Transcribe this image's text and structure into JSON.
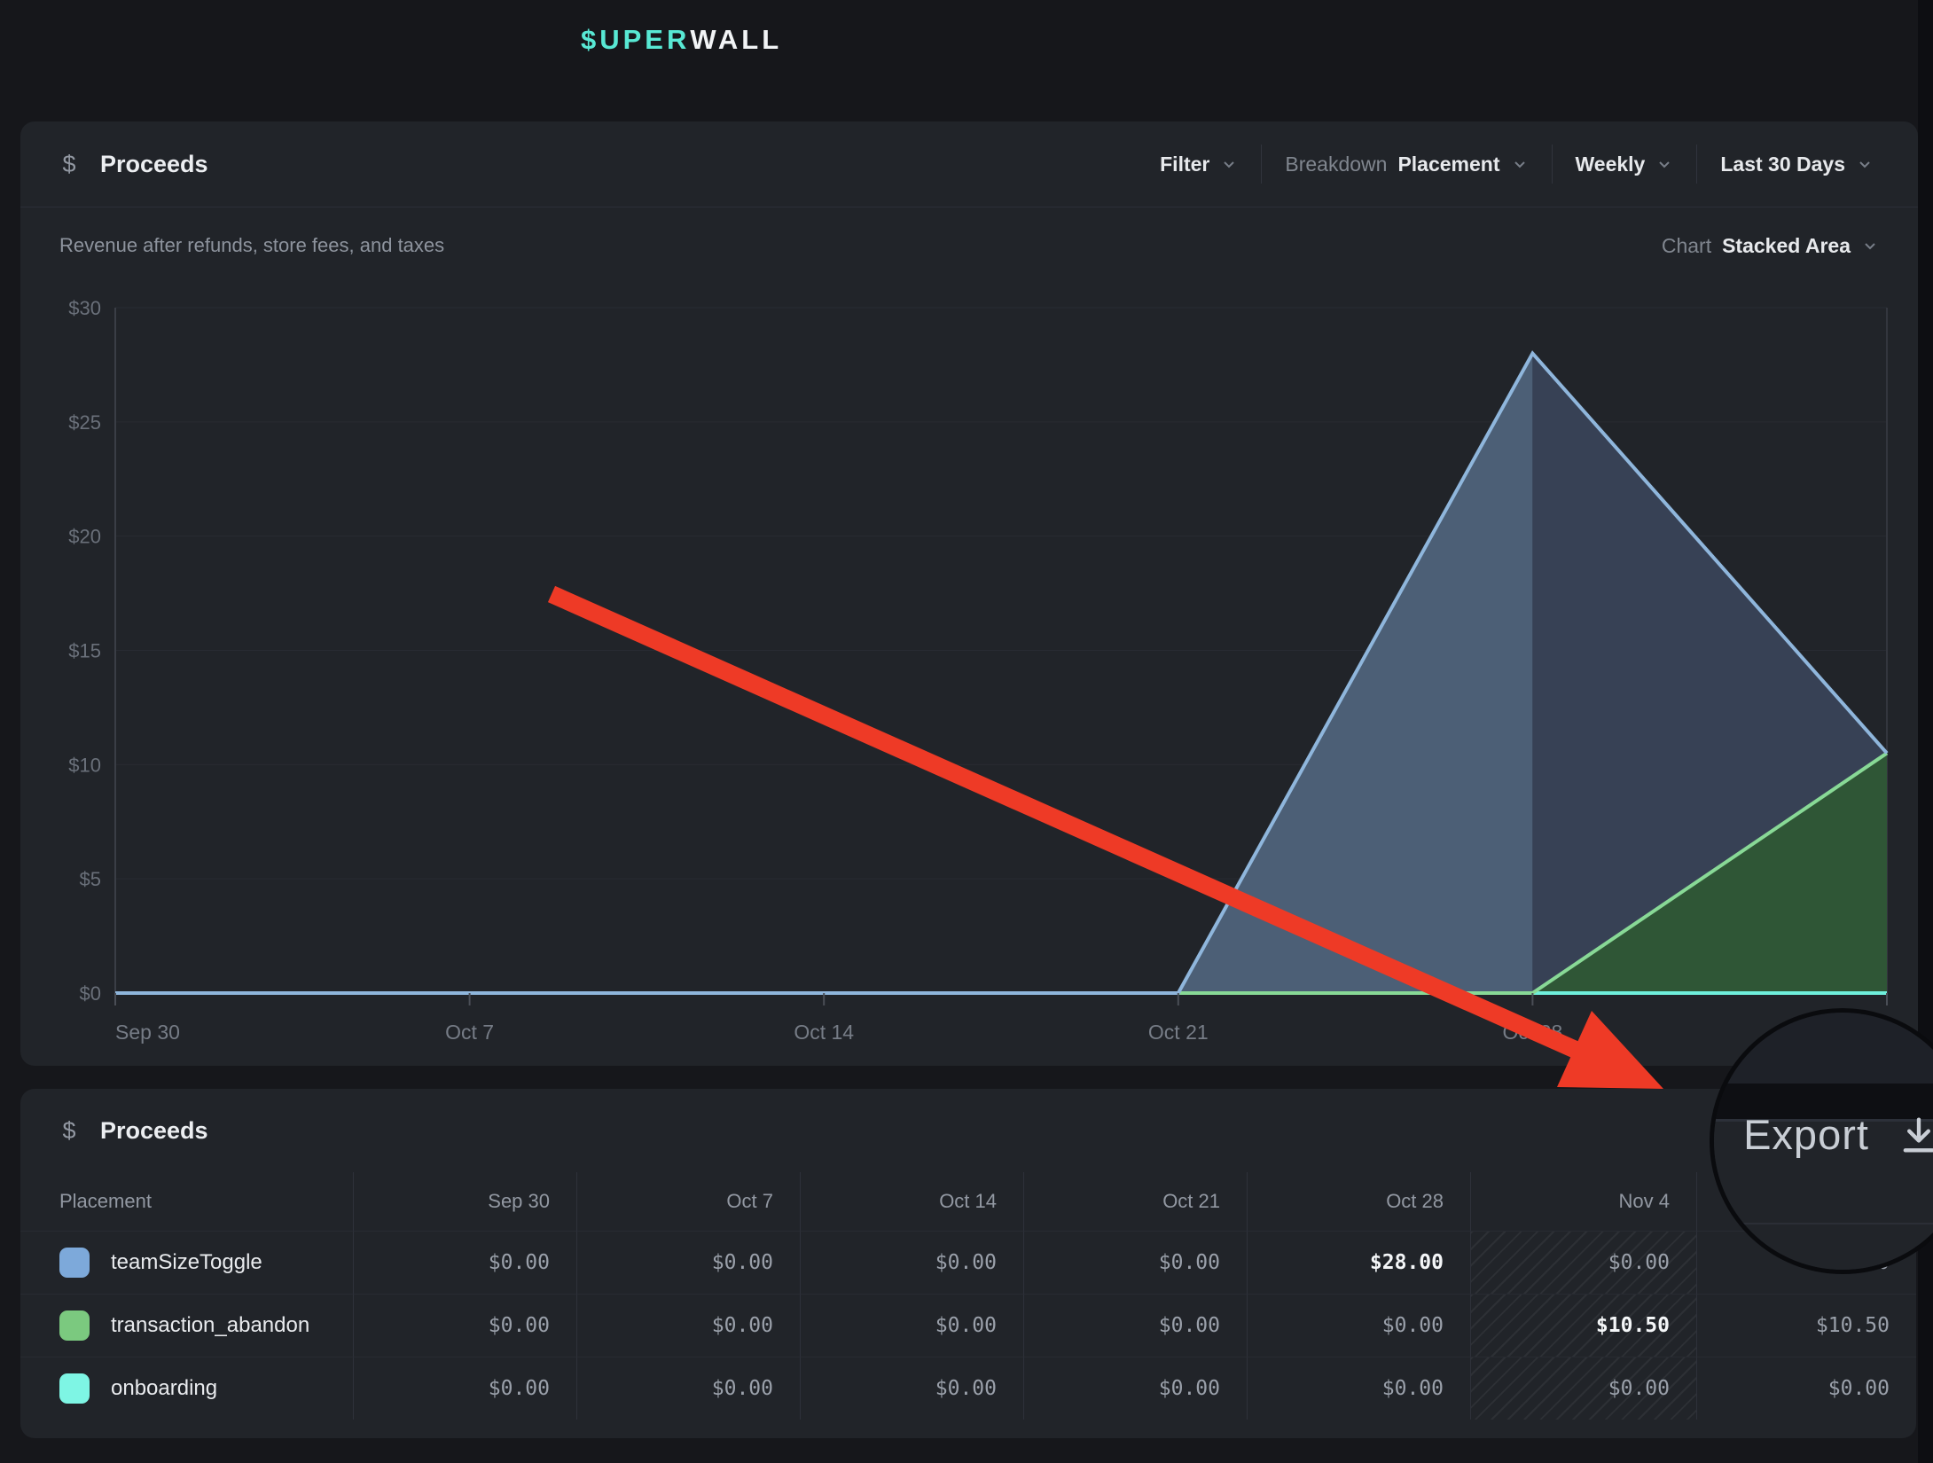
{
  "logo": {
    "teal_part": "$UPER",
    "white_part": "WALL"
  },
  "panel_chart": {
    "icon": "$",
    "title": "Proceeds",
    "subtitle": "Revenue after refunds, store fees, and taxes",
    "controls": {
      "filter_label": "Filter",
      "breakdown_label": "Breakdown",
      "breakdown_value": "Placement",
      "interval_value": "Weekly",
      "range_value": "Last 30 Days"
    },
    "chart_selector": {
      "label": "Chart",
      "value": "Stacked Area"
    }
  },
  "chart_data": {
    "type": "area",
    "stacked": true,
    "x": [
      "Sep 30",
      "Oct 7",
      "Oct 14",
      "Oct 21",
      "Oct 28",
      "Nov 4"
    ],
    "series": [
      {
        "name": "onboarding",
        "color": "#6fefdc",
        "values": [
          0,
          0,
          0,
          0,
          0,
          0
        ]
      },
      {
        "name": "transaction_abandon",
        "color": "#88d996",
        "values": [
          0,
          0,
          0,
          0,
          0,
          10.5
        ]
      },
      {
        "name": "teamSizeToggle",
        "color": "#8fb6dc",
        "values": [
          0,
          0,
          0,
          0,
          28,
          0
        ]
      }
    ],
    "y_ticks": [
      {
        "label": "$0",
        "value": 0
      },
      {
        "label": "$5",
        "value": 5
      },
      {
        "label": "$10",
        "value": 10
      },
      {
        "label": "$15",
        "value": 15
      },
      {
        "label": "$20",
        "value": 20
      },
      {
        "label": "$25",
        "value": 25
      },
      {
        "label": "$30",
        "value": 30
      }
    ],
    "ylim": [
      0,
      30
    ],
    "grid": true,
    "incomplete_from_index": 4,
    "fills": {
      "blue_complete": "#4c5f76",
      "blue_incomplete": "#374155",
      "green": "#2f5636"
    }
  },
  "panel_table": {
    "icon": "$",
    "title": "Proceeds",
    "columns": [
      "Placement",
      "Sep 30",
      "Oct 7",
      "Oct 14",
      "Oct 21",
      "Oct 28",
      "Nov 4",
      ""
    ],
    "hatched_value_col": 5,
    "rows": [
      {
        "label": "teamSizeToggle",
        "swatch": "#7da9da",
        "values": [
          "$0.00",
          "$0.00",
          "$0.00",
          "$0.00",
          "$28.00",
          "$0.00",
          "$28.00"
        ],
        "bold": [
          4
        ]
      },
      {
        "label": "transaction_abandon",
        "swatch": "#7bc97f",
        "values": [
          "$0.00",
          "$0.00",
          "$0.00",
          "$0.00",
          "$0.00",
          "$10.50",
          "$10.50"
        ],
        "bold": [
          5
        ]
      },
      {
        "label": "onboarding",
        "swatch": "#7ef5e4",
        "values": [
          "$0.00",
          "$0.00",
          "$0.00",
          "$0.00",
          "$0.00",
          "$0.00",
          "$0.00"
        ],
        "bold": []
      }
    ]
  },
  "overlay": {
    "export_label": "Export"
  },
  "annotation": {
    "arrow_color": "#ee3a26"
  },
  "colors": {
    "page_bg": "#16171b",
    "card_bg": "#212429",
    "divider": "#2c2f37",
    "axis_text": "#6a707a",
    "gridline": "#282b32",
    "accent_teal": "#58e8d4"
  }
}
